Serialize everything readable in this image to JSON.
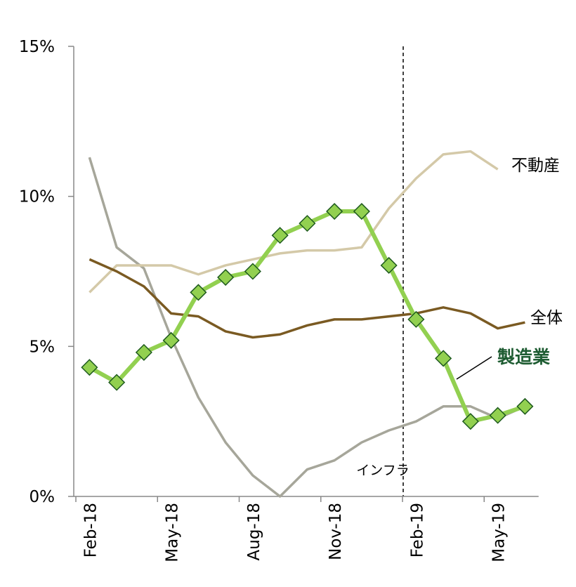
{
  "chart_data": {
    "type": "line",
    "categories": [
      "Feb-18",
      null,
      null,
      "May-18",
      null,
      null,
      "Aug-18",
      null,
      null,
      "Nov-18",
      null,
      null,
      "Feb-19",
      null,
      null,
      "May-19",
      null
    ],
    "series": [
      {
        "name": "インフラ",
        "color": "#a6a69a",
        "values": [
          11.3,
          8.3,
          7.6,
          5.3,
          3.3,
          1.8,
          0.7,
          0.0,
          0.9,
          1.2,
          1.8,
          2.2,
          2.5,
          3.0,
          3.0,
          2.6,
          3.0
        ]
      },
      {
        "name": "不動産",
        "color": "#d4c9a8",
        "values": [
          6.8,
          7.7,
          7.7,
          7.7,
          7.4,
          7.7,
          7.9,
          8.1,
          8.2,
          8.2,
          8.3,
          9.6,
          10.6,
          11.4,
          11.5,
          10.9,
          null
        ]
      },
      {
        "name": "全体",
        "color": "#7a5a22",
        "values": [
          7.9,
          7.5,
          7.0,
          6.1,
          6.0,
          5.5,
          5.3,
          5.4,
          5.7,
          5.9,
          5.9,
          6.0,
          6.1,
          6.3,
          6.1,
          5.6,
          5.8
        ]
      },
      {
        "name": "製造業",
        "color": "#92d050",
        "values": [
          4.3,
          3.8,
          4.8,
          5.2,
          6.8,
          7.3,
          7.5,
          8.7,
          9.1,
          9.5,
          9.5,
          7.7,
          5.9,
          4.6,
          2.5,
          2.7,
          3.0
        ]
      }
    ],
    "ylim": [
      0,
      15
    ],
    "yticks": [
      {
        "value": 0,
        "label": "0%"
      },
      {
        "value": 5,
        "label": "5%"
      },
      {
        "value": 10,
        "label": "10%"
      },
      {
        "value": 15,
        "label": "15%"
      }
    ]
  }
}
